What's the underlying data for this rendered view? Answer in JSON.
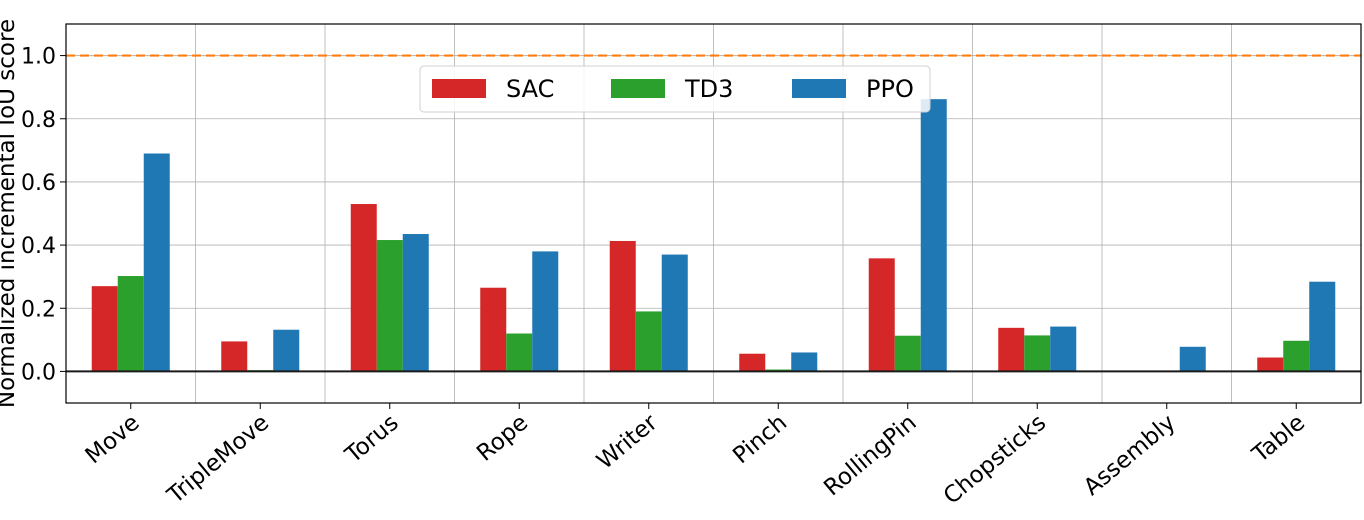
{
  "chart_data": {
    "type": "bar",
    "title": "",
    "xlabel": "",
    "ylabel": "Normalized incremental IoU score",
    "categories": [
      "Move",
      "TripleMove",
      "Torus",
      "Rope",
      "Writer",
      "Pinch",
      "RollingPin",
      "Chopsticks",
      "Assembly",
      "Table"
    ],
    "series": [
      {
        "name": "SAC",
        "color": "#d62728",
        "values": [
          0.27,
          0.095,
          0.53,
          0.265,
          0.413,
          0.056,
          0.358,
          0.138,
          0.0,
          0.044
        ]
      },
      {
        "name": "TD3",
        "color": "#2ca02c",
        "values": [
          0.302,
          0.004,
          0.416,
          0.12,
          0.19,
          0.006,
          0.113,
          0.114,
          0.0,
          0.097
        ]
      },
      {
        "name": "PPO",
        "color": "#1f77b4",
        "values": [
          0.69,
          0.132,
          0.435,
          0.38,
          0.37,
          0.06,
          0.862,
          0.142,
          0.078,
          0.284
        ]
      }
    ],
    "ylim": [
      -0.1,
      1.1
    ],
    "yticks": [
      "0.0",
      "0.2",
      "0.4",
      "0.6",
      "0.8",
      "1.0"
    ],
    "reference_line": {
      "value": 1.0,
      "color": "#ff7f0e",
      "style": "dashed"
    },
    "grid": true,
    "legend": {
      "position": "top-center",
      "entries": [
        "SAC",
        "TD3",
        "PPO"
      ]
    }
  }
}
